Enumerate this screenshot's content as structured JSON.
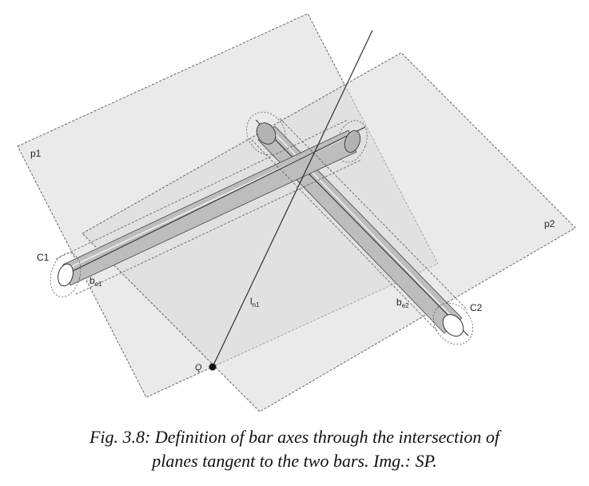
{
  "labels": {
    "p1": "p1",
    "p2": "p2",
    "c1": "C1",
    "c2": "C2",
    "be1_base": "b",
    "be1_sub": "e1",
    "be2_base": "b",
    "be2_sub": "e2",
    "ln1_base": "l",
    "ln1_sub": "n1",
    "q": "Q"
  },
  "caption": {
    "line1": "Fig. 3.8: Definition of bar axes through the intersection of",
    "line2": "planes tangent to the two bars. Img.: SP."
  },
  "colors": {
    "plane_fill": "#d6d6d6",
    "bar_fill": "#bdbdbd",
    "outline": "#333333",
    "background": "#ffffff"
  }
}
